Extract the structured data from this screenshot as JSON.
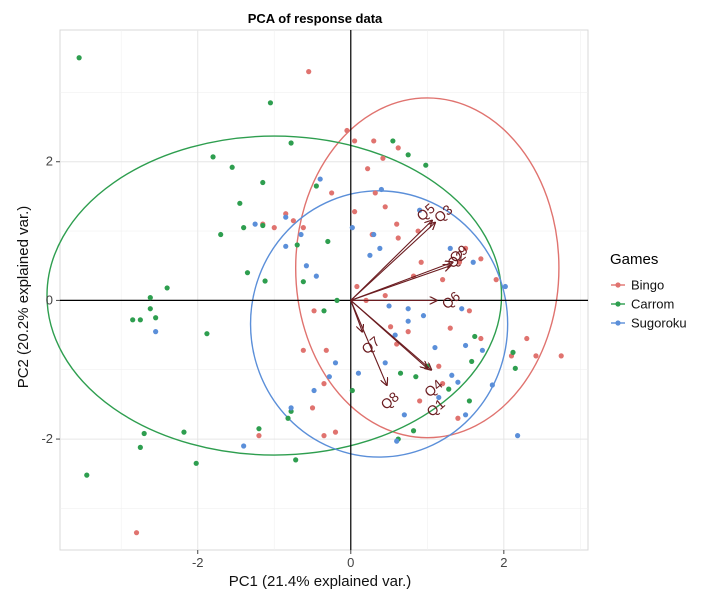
{
  "chart_data": {
    "type": "scatter",
    "title": "PCA of response data",
    "xlabel": "PC1 (21.4% explained var.)",
    "ylabel": "PC2 (20.2% explained var.)",
    "xlim": [
      -3.8,
      3.1
    ],
    "ylim": [
      -3.6,
      3.9
    ],
    "xticks": [
      -2,
      0,
      2
    ],
    "yticks": [
      -2,
      0,
      2
    ],
    "grid": true,
    "legend_title": "Games",
    "legend_position": "right",
    "series": [
      {
        "name": "Bingo",
        "color": "#E0736F",
        "points": [
          [
            -0.55,
            3.3
          ],
          [
            -0.05,
            2.45
          ],
          [
            0.05,
            2.3
          ],
          [
            0.3,
            2.3
          ],
          [
            0.62,
            2.2
          ],
          [
            0.42,
            2.05
          ],
          [
            0.22,
            1.9
          ],
          [
            0.32,
            1.55
          ],
          [
            -0.25,
            1.55
          ],
          [
            -1.0,
            1.05
          ],
          [
            -0.85,
            1.25
          ],
          [
            -0.75,
            1.15
          ],
          [
            -0.62,
            1.05
          ],
          [
            -1.15,
            1.1
          ],
          [
            0.05,
            1.28
          ],
          [
            0.45,
            1.35
          ],
          [
            0.6,
            1.1
          ],
          [
            0.28,
            0.95
          ],
          [
            0.62,
            0.9
          ],
          [
            0.88,
            1.0
          ],
          [
            0.92,
            0.55
          ],
          [
            0.82,
            0.35
          ],
          [
            1.2,
            0.3
          ],
          [
            1.42,
            0.55
          ],
          [
            1.5,
            0.75
          ],
          [
            1.7,
            0.6
          ],
          [
            1.9,
            0.3
          ],
          [
            0.08,
            0.2
          ],
          [
            0.2,
            0.0
          ],
          [
            0.45,
            0.07
          ],
          [
            -0.48,
            -0.15
          ],
          [
            -0.32,
            -0.72
          ],
          [
            -0.62,
            -0.72
          ],
          [
            0.52,
            -0.38
          ],
          [
            0.6,
            -0.63
          ],
          [
            0.75,
            -0.45
          ],
          [
            1.3,
            -0.4
          ],
          [
            1.55,
            -0.15
          ],
          [
            1.7,
            -0.55
          ],
          [
            2.1,
            -0.8
          ],
          [
            2.3,
            -0.55
          ],
          [
            2.42,
            -0.8
          ],
          [
            2.75,
            -0.8
          ],
          [
            1.15,
            -0.95
          ],
          [
            1.2,
            -1.2
          ],
          [
            -1.2,
            -1.95
          ],
          [
            -0.5,
            -1.55
          ],
          [
            -0.2,
            -1.9
          ],
          [
            -0.35,
            -1.95
          ],
          [
            -2.8,
            -3.35
          ],
          [
            0.9,
            -1.45
          ],
          [
            1.4,
            -1.7
          ],
          [
            -0.35,
            -1.2
          ]
        ]
      },
      {
        "name": "Carrom",
        "color": "#2E9E4F",
        "points": [
          [
            -3.55,
            3.5
          ],
          [
            -1.05,
            2.85
          ],
          [
            -0.78,
            2.27
          ],
          [
            -1.8,
            2.07
          ],
          [
            -1.55,
            1.92
          ],
          [
            -1.15,
            1.7
          ],
          [
            -0.45,
            1.65
          ],
          [
            -1.45,
            1.4
          ],
          [
            -1.15,
            1.08
          ],
          [
            -1.4,
            1.05
          ],
          [
            -1.7,
            0.95
          ],
          [
            -0.7,
            0.8
          ],
          [
            -0.3,
            0.85
          ],
          [
            -1.35,
            0.4
          ],
          [
            -1.12,
            0.28
          ],
          [
            -2.4,
            0.18
          ],
          [
            -2.62,
            0.04
          ],
          [
            -2.62,
            -0.12
          ],
          [
            -2.85,
            -0.28
          ],
          [
            -2.75,
            -0.28
          ],
          [
            -2.55,
            -0.25
          ],
          [
            -1.88,
            -0.48
          ],
          [
            -0.18,
            0.0
          ],
          [
            -0.35,
            -0.15
          ],
          [
            0.55,
            2.3
          ],
          [
            0.75,
            2.1
          ],
          [
            0.98,
            1.95
          ],
          [
            -0.62,
            0.27
          ],
          [
            -2.75,
            -2.12
          ],
          [
            -2.7,
            -1.92
          ],
          [
            -2.18,
            -1.9
          ],
          [
            -2.02,
            -2.35
          ],
          [
            -3.45,
            -2.52
          ],
          [
            -0.72,
            -2.3
          ],
          [
            -0.82,
            -1.7
          ],
          [
            -0.78,
            -1.6
          ],
          [
            -1.2,
            -1.85
          ],
          [
            0.02,
            -1.3
          ],
          [
            0.65,
            -1.05
          ],
          [
            0.85,
            -1.1
          ],
          [
            0.82,
            -1.88
          ],
          [
            0.62,
            -2.0
          ],
          [
            1.0,
            -0.95
          ],
          [
            1.62,
            -0.52
          ],
          [
            1.58,
            -0.88
          ],
          [
            2.15,
            -0.98
          ],
          [
            2.12,
            -0.75
          ],
          [
            1.55,
            -1.45
          ],
          [
            1.28,
            -1.28
          ]
        ]
      },
      {
        "name": "Sugoroku",
        "color": "#5B8FD9",
        "points": [
          [
            -0.4,
            1.75
          ],
          [
            0.4,
            1.6
          ],
          [
            0.9,
            1.3
          ],
          [
            -0.85,
            1.2
          ],
          [
            -0.65,
            0.95
          ],
          [
            -0.85,
            0.78
          ],
          [
            -1.25,
            1.1
          ],
          [
            0.02,
            1.05
          ],
          [
            0.3,
            0.95
          ],
          [
            -0.58,
            0.5
          ],
          [
            -0.45,
            0.35
          ],
          [
            0.25,
            0.65
          ],
          [
            0.38,
            0.75
          ],
          [
            1.3,
            0.75
          ],
          [
            1.6,
            0.55
          ],
          [
            2.02,
            0.2
          ],
          [
            1.45,
            -0.12
          ],
          [
            0.75,
            -0.12
          ],
          [
            0.95,
            -0.22
          ],
          [
            0.5,
            -0.08
          ],
          [
            0.75,
            -0.3
          ],
          [
            1.1,
            -0.68
          ],
          [
            1.5,
            -0.65
          ],
          [
            1.72,
            -0.72
          ],
          [
            1.85,
            -1.22
          ],
          [
            1.4,
            -1.18
          ],
          [
            1.32,
            -1.08
          ],
          [
            1.15,
            -1.4
          ],
          [
            1.5,
            -1.65
          ],
          [
            2.18,
            -1.95
          ],
          [
            0.7,
            -1.65
          ],
          [
            0.6,
            -2.03
          ],
          [
            0.1,
            -1.05
          ],
          [
            -0.2,
            -0.9
          ],
          [
            -0.28,
            -1.1
          ],
          [
            -0.78,
            -1.55
          ],
          [
            -1.4,
            -2.1
          ],
          [
            -2.55,
            -0.45
          ],
          [
            0.45,
            -0.9
          ],
          [
            0.58,
            -0.5
          ],
          [
            -0.48,
            -1.3
          ]
        ]
      }
    ],
    "ellipses": [
      {
        "series": "Bingo",
        "cx": 1.0,
        "cy": 0.47,
        "rx": 1.72,
        "ry": 2.45
      },
      {
        "series": "Carrom",
        "cx": -1.0,
        "cy": 0.07,
        "rx": 2.97,
        "ry": 2.3
      },
      {
        "series": "Sugoroku",
        "cx": 0.37,
        "cy": -0.34,
        "rx": 1.68,
        "ry": 1.92
      }
    ],
    "loadings": [
      {
        "label": "Q1",
        "x": 1.05,
        "y": -1.0
      },
      {
        "label": "Q2",
        "x": 1.33,
        "y": 0.55
      },
      {
        "label": "Q3",
        "x": 1.1,
        "y": 1.12
      },
      {
        "label": "Q4",
        "x": 1.0,
        "y": -0.98
      },
      {
        "label": "Q5",
        "x": 1.06,
        "y": 1.15
      },
      {
        "label": "Q6",
        "x": 1.12,
        "y": 0.0
      },
      {
        "label": "Q7",
        "x": 0.15,
        "y": -0.45
      },
      {
        "label": "Q8",
        "x": 0.47,
        "y": -1.22
      },
      {
        "label": "Q9",
        "x": 1.3,
        "y": 0.5
      }
    ],
    "loading_label_positions": {
      "Q1": [
        1.15,
        -1.6
      ],
      "Q2": [
        1.42,
        0.54
      ],
      "Q3": [
        1.25,
        1.2
      ],
      "Q4": [
        1.12,
        -1.32
      ],
      "Q5": [
        1.02,
        1.22
      ],
      "Q6": [
        1.35,
        -0.05
      ],
      "Q7": [
        0.3,
        -0.7
      ],
      "Q8": [
        0.55,
        -1.5
      ],
      "Q9": [
        1.45,
        0.62
      ]
    }
  }
}
